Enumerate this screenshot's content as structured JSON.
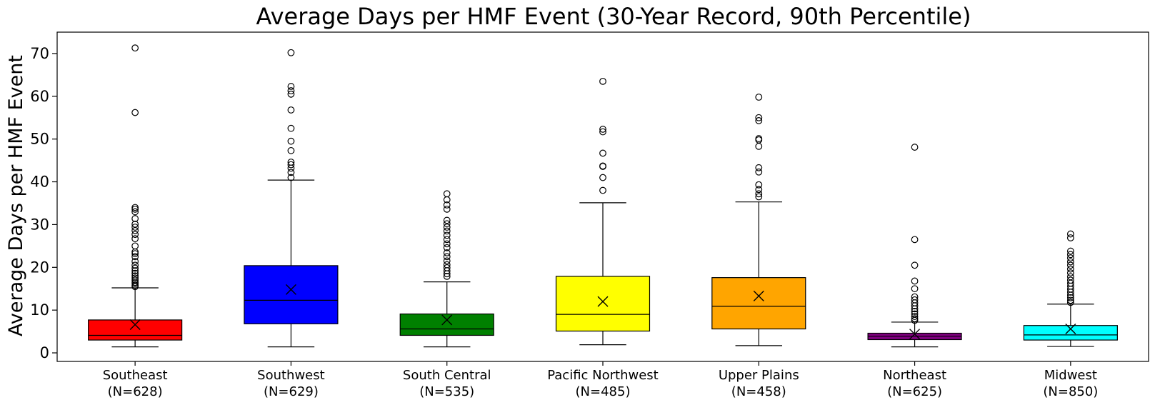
{
  "chart_data": {
    "type": "box",
    "title": "Average Days per HMF Event (30-Year Record, 90th Percentile)",
    "xlabel": "",
    "ylabel": "Average Days per HMF Event",
    "ylim": [
      -2,
      75
    ],
    "yticks": [
      0,
      10,
      20,
      30,
      40,
      50,
      60,
      70
    ],
    "grid": false,
    "legend": "none",
    "mean_marker": "x",
    "categories": [
      {
        "region": "Southeast",
        "n_label": "(N=628)"
      },
      {
        "region": "Southwest",
        "n_label": "(N=629)"
      },
      {
        "region": "South Central",
        "n_label": "(N=535)"
      },
      {
        "region": "Pacific Northwest",
        "n_label": "(N=485)"
      },
      {
        "region": "Upper Plains",
        "n_label": "(N=458)"
      },
      {
        "region": "Northeast",
        "n_label": "(N=625)"
      },
      {
        "region": "Midwest",
        "n_label": "(N=850)"
      }
    ],
    "series": [
      {
        "category": "Southeast",
        "color": "#ff0000",
        "whisker_low": 1.4,
        "q1": 3.0,
        "median": 4.1,
        "q3": 7.7,
        "whisker_high": 15.2,
        "mean": 6.6,
        "outliers": [
          15.5,
          15.8,
          16.2,
          16.5,
          17.0,
          17.5,
          18.0,
          18.6,
          19.2,
          19.8,
          20.5,
          21.4,
          22.5,
          23.2,
          23.6,
          25.0,
          26.7,
          27.7,
          28.6,
          29.4,
          30.1,
          31.4,
          33.0,
          33.6,
          34.0,
          56.2,
          71.3
        ]
      },
      {
        "category": "Southwest",
        "color": "#0000ff",
        "whisker_low": 1.4,
        "q1": 6.8,
        "median": 12.3,
        "q3": 20.4,
        "whisker_high": 40.4,
        "mean": 14.8,
        "outliers": [
          41.0,
          42.2,
          43.2,
          44.0,
          44.6,
          47.3,
          49.5,
          52.5,
          56.8,
          60.5,
          61.3,
          62.3,
          70.2
        ]
      },
      {
        "category": "South Central",
        "color": "#008000",
        "whisker_low": 1.4,
        "q1": 4.1,
        "median": 5.6,
        "q3": 9.1,
        "whisker_high": 16.6,
        "mean": 7.7,
        "outliers": [
          17.9,
          18.5,
          19.2,
          19.9,
          20.6,
          21.5,
          22.5,
          23.4,
          24.6,
          25.5,
          26.5,
          27.5,
          28.5,
          29.4,
          30.2,
          31.0,
          33.6,
          34.6,
          35.8,
          37.2
        ]
      },
      {
        "category": "Pacific Northwest",
        "color": "#ffff00",
        "whisker_low": 1.9,
        "q1": 5.1,
        "median": 9.0,
        "q3": 17.9,
        "whisker_high": 35.1,
        "mean": 12.0,
        "outliers": [
          38.0,
          41.0,
          43.6,
          43.7,
          46.7,
          51.7,
          52.3,
          63.5
        ]
      },
      {
        "category": "Upper Plains",
        "color": "#ffa500",
        "whisker_low": 1.7,
        "q1": 5.6,
        "median": 10.9,
        "q3": 17.6,
        "whisker_high": 35.3,
        "mean": 13.3,
        "outliers": [
          36.5,
          37.2,
          38.2,
          39.3,
          42.3,
          43.3,
          48.3,
          49.8,
          50.1,
          54.3,
          55.0,
          59.8
        ]
      },
      {
        "category": "Northeast",
        "color": "#800080",
        "whisker_low": 1.4,
        "q1": 3.1,
        "median": 3.9,
        "q3": 4.6,
        "whisker_high": 7.2,
        "mean": 4.4,
        "outliers": [
          7.6,
          8.0,
          8.5,
          9.1,
          9.7,
          10.3,
          11.0,
          11.7,
          12.4,
          13.1,
          15.0,
          16.8,
          20.5,
          26.5,
          48.1
        ]
      },
      {
        "category": "Midwest",
        "color": "#00ffff",
        "whisker_low": 1.5,
        "q1": 3.0,
        "median": 4.2,
        "q3": 6.4,
        "whisker_high": 11.4,
        "mean": 5.6,
        "outliers": [
          11.8,
          12.3,
          12.9,
          13.5,
          14.2,
          14.9,
          15.6,
          16.3,
          17.0,
          17.8,
          18.7,
          19.6,
          20.5,
          21.3,
          22.2,
          23.0,
          23.8,
          26.9,
          27.8
        ]
      }
    ]
  }
}
